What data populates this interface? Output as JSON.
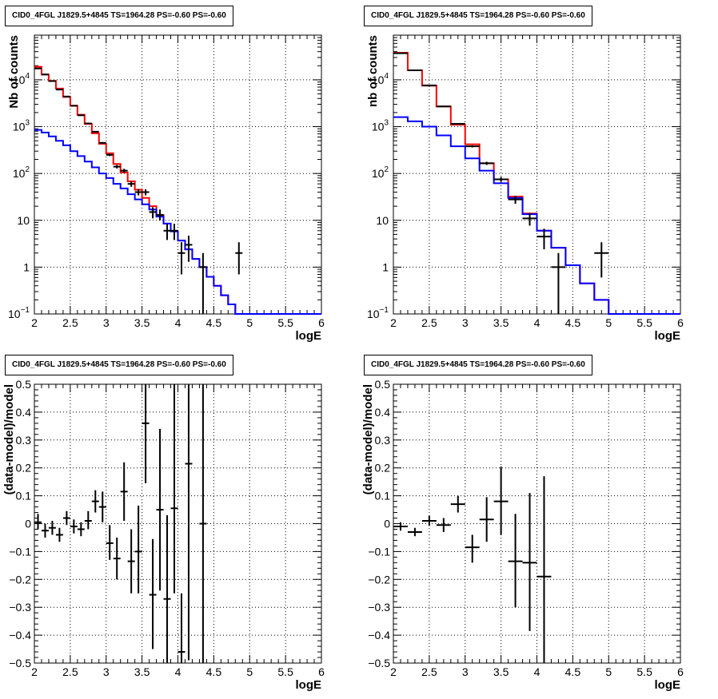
{
  "chart_data": [
    {
      "type": "line",
      "title": "CID0_4FGL J1829.5+4845 TS=1964.28 PS=-0.60 PS=-0.60",
      "xlabel": "logE",
      "ylabel": "Nb of counts",
      "yscale": "log",
      "xlim": [
        2,
        6
      ],
      "ylim": [
        0.1,
        90000
      ],
      "grid": true,
      "x_ticks": [
        "2",
        "2.5",
        "3",
        "3.5",
        "4",
        "4.5",
        "5",
        "5.5",
        "6"
      ],
      "y_ticks": [
        {
          "v": 0.1,
          "base": "10",
          "exp": "−1"
        },
        {
          "v": 1,
          "label": "1"
        },
        {
          "v": 10,
          "label": "10"
        },
        {
          "v": 100,
          "base": "10",
          "exp": "2"
        },
        {
          "v": 1000,
          "base": "10",
          "exp": "3"
        },
        {
          "v": 10000,
          "base": "10",
          "exp": "4"
        }
      ],
      "bin_edges": [
        2.0,
        2.1,
        2.2,
        2.3,
        2.4,
        2.5,
        2.6,
        2.7,
        2.8,
        2.9,
        3.0,
        3.1,
        3.2,
        3.3,
        3.4,
        3.5,
        3.6,
        3.7,
        3.8,
        3.9,
        4.0,
        4.1,
        4.2,
        4.3,
        4.4,
        4.5,
        4.6,
        4.7,
        4.8,
        4.9,
        5.0,
        5.1,
        5.2,
        5.3,
        5.4,
        5.5,
        5.6,
        5.7,
        5.8,
        5.9,
        6.0
      ],
      "series": [
        {
          "color": "#ff0000",
          "values": [
            19000,
            13000,
            9500,
            6500,
            4300,
            2800,
            1800,
            1150,
            720,
            430,
            270,
            160,
            105,
            68,
            45,
            30,
            20,
            13,
            8.5,
            5.8,
            3.7,
            2.4,
            1.5,
            1,
            0.62,
            0.4,
            0.25,
            0.16,
            0.1,
            0.1,
            0.1,
            0.1,
            0.1,
            0.1,
            0.1,
            0.1,
            0.1,
            0.1,
            0.1,
            0.1
          ]
        },
        {
          "color": "#0000ff",
          "values": [
            850,
            750,
            620,
            500,
            400,
            300,
            235,
            180,
            135,
            100,
            80,
            60,
            48,
            36,
            28,
            22,
            17,
            12,
            8.5,
            5.8,
            3.7,
            2.4,
            1.5,
            1,
            0.62,
            0.4,
            0.25,
            0.16,
            0.1,
            0.1,
            0.1,
            0.1,
            0.1,
            0.1,
            0.1,
            0.1,
            0.1,
            0.1,
            0.1,
            0.1
          ]
        }
      ],
      "points": [
        {
          "x": 2.05,
          "y": 17500,
          "lo": 17300,
          "hi": 17700
        },
        {
          "x": 2.15,
          "y": 13000,
          "lo": 12800,
          "hi": 13200
        },
        {
          "x": 2.25,
          "y": 9400,
          "lo": 9250,
          "hi": 9550
        },
        {
          "x": 2.35,
          "y": 6200,
          "lo": 6100,
          "hi": 6300
        },
        {
          "x": 2.45,
          "y": 4400,
          "lo": 4320,
          "hi": 4480
        },
        {
          "x": 2.55,
          "y": 2800,
          "lo": 2750,
          "hi": 2850
        },
        {
          "x": 2.65,
          "y": 1750,
          "lo": 1710,
          "hi": 1790
        },
        {
          "x": 2.75,
          "y": 1170,
          "lo": 1140,
          "hi": 1200
        },
        {
          "x": 2.85,
          "y": 780,
          "lo": 755,
          "hi": 805
        },
        {
          "x": 2.95,
          "y": 450,
          "lo": 430,
          "hi": 470
        },
        {
          "x": 3.05,
          "y": 250,
          "lo": 235,
          "hi": 265
        },
        {
          "x": 3.15,
          "y": 140,
          "lo": 128,
          "hi": 152
        },
        {
          "x": 3.25,
          "y": 115,
          "lo": 104,
          "hi": 126
        },
        {
          "x": 3.35,
          "y": 60,
          "lo": 52,
          "hi": 68
        },
        {
          "x": 3.45,
          "y": 40,
          "lo": 34,
          "hi": 46
        },
        {
          "x": 3.55,
          "y": 40,
          "lo": 34,
          "hi": 46
        },
        {
          "x": 3.65,
          "y": 15,
          "lo": 11,
          "hi": 19
        },
        {
          "x": 3.75,
          "y": 13,
          "lo": 10,
          "hi": 17
        },
        {
          "x": 3.85,
          "y": 6,
          "lo": 3.8,
          "hi": 8.4
        },
        {
          "x": 3.95,
          "y": 6,
          "lo": 3.8,
          "hi": 8.4
        },
        {
          "x": 4.05,
          "y": 2,
          "lo": 0.7,
          "hi": 3.4
        },
        {
          "x": 4.15,
          "y": 3,
          "lo": 1.3,
          "hi": 4.7
        },
        {
          "x": 4.35,
          "y": 1,
          "lo": 0.1,
          "hi": 2
        },
        {
          "x": 4.85,
          "y": 2,
          "lo": 0.7,
          "hi": 3.4
        }
      ]
    },
    {
      "type": "line",
      "title": "CID0_4FGL J1829.5+4845 TS=1964.28 PS=-0.60 PS=-0.60",
      "xlabel": "logE",
      "ylabel": "nb of counts",
      "yscale": "log",
      "xlim": [
        2,
        6
      ],
      "ylim": [
        0.1,
        90000
      ],
      "grid": true,
      "x_ticks": [
        "2",
        "2.5",
        "3",
        "3.5",
        "4",
        "4.5",
        "5",
        "5.5",
        "6"
      ],
      "y_ticks": [
        {
          "v": 0.1,
          "base": "10",
          "exp": "−1"
        },
        {
          "v": 1,
          "label": "1"
        },
        {
          "v": 10,
          "label": "10"
        },
        {
          "v": 100,
          "base": "10",
          "exp": "2"
        },
        {
          "v": 1000,
          "base": "10",
          "exp": "3"
        },
        {
          "v": 10000,
          "base": "10",
          "exp": "4"
        }
      ],
      "bin_edges": [
        2.0,
        2.2,
        2.4,
        2.6,
        2.8,
        3.0,
        3.2,
        3.4,
        3.6,
        3.8,
        4.0,
        4.2,
        4.4,
        4.6,
        4.8,
        5.0,
        5.2,
        5.4,
        5.6,
        5.8,
        6.0
      ],
      "series": [
        {
          "color": "#ff0000",
          "values": [
            38000,
            16000,
            7500,
            2700,
            1100,
            420,
            165,
            75,
            32,
            14,
            6,
            2.6,
            1.1,
            0.45,
            0.2,
            0.1,
            0.1,
            0.1,
            0.1,
            0.1
          ]
        },
        {
          "color": "#0000ff",
          "values": [
            1600,
            1300,
            1000,
            650,
            380,
            210,
            115,
            62,
            30,
            13.5,
            6,
            2.6,
            1.1,
            0.45,
            0.2,
            0.1,
            0.1,
            0.1,
            0.1,
            0.1
          ]
        }
      ],
      "points": [
        {
          "x": 2.1,
          "y": 37000,
          "lo": 36700,
          "hi": 37300
        },
        {
          "x": 2.3,
          "y": 16000,
          "lo": 15850,
          "hi": 16150
        },
        {
          "x": 2.5,
          "y": 7600,
          "lo": 7500,
          "hi": 7700
        },
        {
          "x": 2.7,
          "y": 2700,
          "lo": 2650,
          "hi": 2750
        },
        {
          "x": 2.9,
          "y": 1150,
          "lo": 1120,
          "hi": 1180
        },
        {
          "x": 3.1,
          "y": 380,
          "lo": 360,
          "hi": 400
        },
        {
          "x": 3.3,
          "y": 165,
          "lo": 152,
          "hi": 178
        },
        {
          "x": 3.5,
          "y": 75,
          "lo": 66,
          "hi": 84
        },
        {
          "x": 3.7,
          "y": 28,
          "lo": 22.5,
          "hi": 33.5
        },
        {
          "x": 3.9,
          "y": 11,
          "lo": 7.7,
          "hi": 14.3
        },
        {
          "x": 4.1,
          "y": 4.5,
          "lo": 2.4,
          "hi": 6.6
        },
        {
          "x": 4.3,
          "y": 1,
          "lo": 0.1,
          "hi": 2
        },
        {
          "x": 4.9,
          "y": 2,
          "lo": 0.6,
          "hi": 3.4
        }
      ]
    },
    {
      "type": "scatter",
      "title": "CID0_4FGL J1829.5+4845 TS=1964.28 PS=-0.60 PS=-0.60",
      "xlabel": "logE",
      "ylabel": "(data-model)/model",
      "xlim": [
        2,
        6
      ],
      "ylim": [
        -0.5,
        0.5
      ],
      "grid": true,
      "x_ticks": [
        "2",
        "2.5",
        "3",
        "3.5",
        "4",
        "4.5",
        "5",
        "5.5",
        "6"
      ],
      "y_ticks": [
        "−0.5",
        "−0.4",
        "−0.3",
        "−0.2",
        "−0.1",
        "0",
        "0.1",
        "0.2",
        "0.3",
        "0.4",
        "0.5"
      ],
      "xerr": 0.05,
      "points": [
        {
          "x": 2.05,
          "y": 0.005,
          "lo": -0.02,
          "hi": 0.035
        },
        {
          "x": 2.15,
          "y": -0.025,
          "lo": -0.05,
          "hi": 0.0
        },
        {
          "x": 2.25,
          "y": -0.015,
          "lo": -0.04,
          "hi": 0.01
        },
        {
          "x": 2.35,
          "y": -0.04,
          "lo": -0.065,
          "hi": -0.015
        },
        {
          "x": 2.45,
          "y": 0.02,
          "lo": -0.005,
          "hi": 0.045
        },
        {
          "x": 2.55,
          "y": -0.01,
          "lo": -0.035,
          "hi": 0.015
        },
        {
          "x": 2.65,
          "y": -0.02,
          "lo": -0.045,
          "hi": 0.005
        },
        {
          "x": 2.75,
          "y": 0.01,
          "lo": -0.02,
          "hi": 0.045
        },
        {
          "x": 2.85,
          "y": 0.08,
          "lo": 0.04,
          "hi": 0.12
        },
        {
          "x": 2.95,
          "y": 0.06,
          "lo": 0.005,
          "hi": 0.115
        },
        {
          "x": 3.05,
          "y": -0.07,
          "lo": -0.13,
          "hi": -0.005
        },
        {
          "x": 3.15,
          "y": -0.125,
          "lo": -0.2,
          "hi": -0.05
        },
        {
          "x": 3.25,
          "y": 0.115,
          "lo": 0.01,
          "hi": 0.22
        },
        {
          "x": 3.35,
          "y": -0.135,
          "lo": -0.25,
          "hi": -0.02
        },
        {
          "x": 3.45,
          "y": -0.1,
          "lo": -0.25,
          "hi": 0.065
        },
        {
          "x": 3.55,
          "y": 0.36,
          "lo": 0.145,
          "hi": 0.5
        },
        {
          "x": 3.65,
          "y": -0.255,
          "lo": -0.45,
          "hi": -0.055
        },
        {
          "x": 3.75,
          "y": 0.05,
          "lo": -0.24,
          "hi": 0.34
        },
        {
          "x": 3.85,
          "y": -0.27,
          "lo": -0.5,
          "hi": 0.03
        },
        {
          "x": 3.95,
          "y": 0.055,
          "lo": -0.25,
          "hi": 0.5
        },
        {
          "x": 4.05,
          "y": -0.46,
          "lo": -0.5,
          "hi": -0.25
        },
        {
          "x": 4.15,
          "y": 0.215,
          "lo": -0.49,
          "hi": 0.5
        },
        {
          "x": 4.35,
          "y": 0.0,
          "lo": -0.5,
          "hi": 0.5
        }
      ]
    },
    {
      "type": "scatter",
      "title": "CID0_4FGL J1829.5+4845 TS=1964.28 PS=-0.60 PS=-0.60",
      "xlabel": "logE",
      "ylabel": "(data-model)/model",
      "xlim": [
        2,
        6
      ],
      "ylim": [
        -0.5,
        0.5
      ],
      "grid": true,
      "x_ticks": [
        "2",
        "2.5",
        "3",
        "3.5",
        "4",
        "4.5",
        "5",
        "5.5",
        "6"
      ],
      "y_ticks": [
        "−0.5",
        "−0.4",
        "−0.3",
        "−0.2",
        "−0.1",
        "0",
        "0.1",
        "0.2",
        "0.3",
        "0.4",
        "0.5"
      ],
      "xerr": 0.1,
      "points": [
        {
          "x": 2.1,
          "y": -0.01,
          "lo": -0.025,
          "hi": 0.005
        },
        {
          "x": 2.3,
          "y": -0.03,
          "lo": -0.045,
          "hi": -0.015
        },
        {
          "x": 2.5,
          "y": 0.01,
          "lo": -0.008,
          "hi": 0.028
        },
        {
          "x": 2.7,
          "y": -0.005,
          "lo": -0.03,
          "hi": 0.02
        },
        {
          "x": 2.9,
          "y": 0.07,
          "lo": 0.04,
          "hi": 0.1
        },
        {
          "x": 3.1,
          "y": -0.085,
          "lo": -0.14,
          "hi": -0.04
        },
        {
          "x": 3.3,
          "y": 0.015,
          "lo": -0.065,
          "hi": 0.095
        },
        {
          "x": 3.5,
          "y": 0.08,
          "lo": -0.04,
          "hi": 0.205
        },
        {
          "x": 3.7,
          "y": -0.135,
          "lo": -0.3,
          "hi": 0.035
        },
        {
          "x": 3.9,
          "y": -0.14,
          "lo": -0.385,
          "hi": 0.11
        },
        {
          "x": 4.1,
          "y": -0.19,
          "lo": -0.5,
          "hi": 0.17
        }
      ]
    }
  ]
}
